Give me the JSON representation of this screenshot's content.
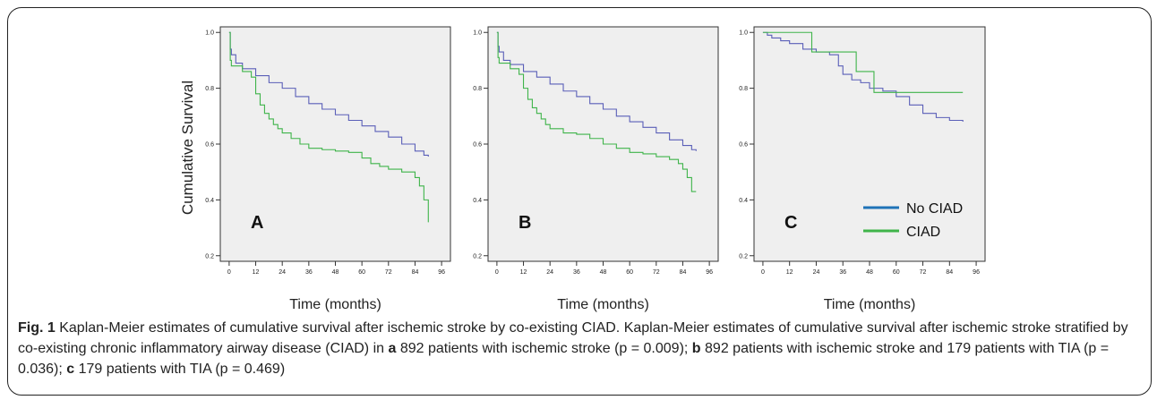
{
  "figure": {
    "ylabel": "Cumulative Survival",
    "xlabel": "Time (months)",
    "caption_label": "Fig. 1",
    "caption_title": "Kaplan-Meier estimates of cumulative survival after ischemic stroke by co-existing CIAD.",
    "caption_body_1": "Kaplan-Meier estimates of cumulative survival after ischemic stroke stratified by co-existing chronic inflammatory airway disease (CIAD) in",
    "caption_a": "a",
    "caption_body_2": "892 patients with ischemic stroke (p = 0.009);",
    "caption_b": "b",
    "caption_body_3": "892 patients with ischemic stroke and 179 patients with TIA (p = 0.036);",
    "caption_c": "c",
    "caption_body_4": "179 patients with TIA (p = 0.469)"
  },
  "colors": {
    "no_ciad": "#5a5fb8",
    "ciad": "#3fb44a",
    "legend_no_ciad": "#1f73b7",
    "legend_ciad": "#3fb44a",
    "plot_bg": "#efefef"
  },
  "chart_data": [
    {
      "type": "line",
      "panel_label": "A",
      "xticks": [
        0,
        12,
        24,
        36,
        48,
        60,
        72,
        84,
        96
      ],
      "yticks": [
        0.2,
        0.4,
        0.6,
        0.8,
        1.0
      ],
      "yticklabels": [
        "0.2",
        "0.4",
        "0.6",
        "0.8",
        "1.0"
      ],
      "xlim": [
        -4,
        100
      ],
      "ylim": [
        0.18,
        1.02
      ],
      "series": [
        {
          "name": "No CIAD",
          "x": [
            0,
            0.5,
            1,
            3,
            6,
            12,
            18,
            24,
            30,
            36,
            42,
            48,
            54,
            60,
            66,
            72,
            78,
            84,
            88,
            90
          ],
          "y": [
            1.0,
            0.94,
            0.92,
            0.89,
            0.87,
            0.845,
            0.82,
            0.8,
            0.77,
            0.745,
            0.725,
            0.705,
            0.685,
            0.665,
            0.645,
            0.625,
            0.6,
            0.575,
            0.56,
            0.555
          ]
        },
        {
          "name": "CIAD",
          "x": [
            0,
            0.5,
            1,
            6,
            10,
            12,
            14,
            16,
            18,
            20,
            22,
            24,
            28,
            32,
            36,
            42,
            48,
            54,
            60,
            64,
            68,
            72,
            78,
            84,
            86,
            88,
            90
          ],
          "y": [
            1.0,
            0.9,
            0.88,
            0.86,
            0.84,
            0.78,
            0.74,
            0.71,
            0.69,
            0.67,
            0.655,
            0.64,
            0.62,
            0.6,
            0.585,
            0.58,
            0.575,
            0.57,
            0.55,
            0.53,
            0.52,
            0.51,
            0.5,
            0.48,
            0.45,
            0.4,
            0.32
          ]
        }
      ]
    },
    {
      "type": "line",
      "panel_label": "B",
      "xticks": [
        0,
        12,
        24,
        36,
        48,
        60,
        72,
        84,
        96
      ],
      "yticks": [
        0.2,
        0.4,
        0.6,
        0.8,
        1.0
      ],
      "yticklabels": [
        "0.2",
        "0.4",
        "0.6",
        "0.8",
        "1.0"
      ],
      "xlim": [
        -4,
        100
      ],
      "ylim": [
        0.18,
        1.02
      ],
      "series": [
        {
          "name": "No CIAD",
          "x": [
            0,
            0.5,
            1,
            3,
            6,
            12,
            18,
            24,
            30,
            36,
            42,
            48,
            54,
            60,
            66,
            72,
            78,
            84,
            88,
            90
          ],
          "y": [
            1.0,
            0.95,
            0.93,
            0.9,
            0.885,
            0.86,
            0.84,
            0.815,
            0.79,
            0.77,
            0.745,
            0.725,
            0.7,
            0.68,
            0.66,
            0.64,
            0.615,
            0.595,
            0.58,
            0.575
          ]
        },
        {
          "name": "CIAD",
          "x": [
            0,
            0.5,
            1,
            6,
            10,
            12,
            14,
            16,
            18,
            20,
            22,
            24,
            30,
            36,
            42,
            48,
            54,
            60,
            66,
            72,
            78,
            82,
            84,
            86,
            88,
            90
          ],
          "y": [
            1.0,
            0.91,
            0.89,
            0.87,
            0.85,
            0.8,
            0.76,
            0.73,
            0.71,
            0.69,
            0.67,
            0.655,
            0.64,
            0.635,
            0.62,
            0.6,
            0.585,
            0.57,
            0.565,
            0.555,
            0.545,
            0.53,
            0.51,
            0.48,
            0.43,
            0.43
          ]
        }
      ]
    },
    {
      "type": "line",
      "panel_label": "C",
      "xticks": [
        0,
        12,
        24,
        36,
        48,
        60,
        72,
        84,
        96
      ],
      "yticks": [
        0.2,
        0.4,
        0.6,
        0.8,
        1.0
      ],
      "yticklabels": [
        "0.2",
        "0.4",
        "0.6",
        "0.8",
        "1.0"
      ],
      "xlim": [
        -4,
        100
      ],
      "ylim": [
        0.18,
        1.02
      ],
      "legend": [
        "No CIAD",
        "CIAD"
      ],
      "series": [
        {
          "name": "No CIAD",
          "x": [
            0,
            2,
            4,
            8,
            12,
            18,
            24,
            30,
            34,
            36,
            40,
            44,
            48,
            54,
            60,
            66,
            72,
            78,
            84,
            90
          ],
          "y": [
            1.0,
            0.99,
            0.98,
            0.97,
            0.96,
            0.94,
            0.93,
            0.92,
            0.88,
            0.85,
            0.83,
            0.82,
            0.8,
            0.79,
            0.77,
            0.74,
            0.71,
            0.695,
            0.685,
            0.68
          ]
        },
        {
          "name": "CIAD",
          "x": [
            0,
            20,
            22,
            38,
            42,
            50,
            90
          ],
          "y": [
            1.0,
            1.0,
            0.93,
            0.93,
            0.86,
            0.785,
            0.785
          ]
        }
      ]
    }
  ]
}
